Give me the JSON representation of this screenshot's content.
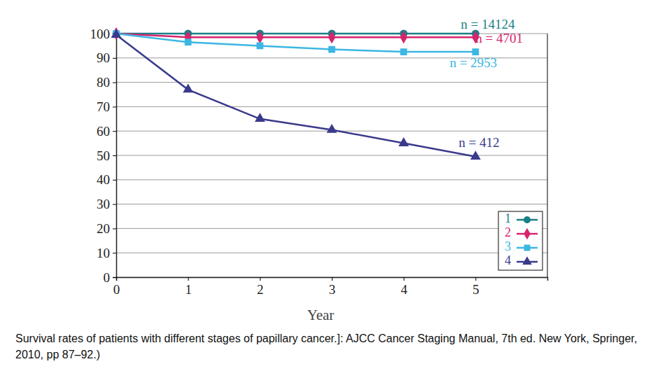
{
  "chart_data": {
    "type": "line",
    "caption": "Survival rates of patients with different stages of papillary cancer.]: AJCC Cancer Staging Manual, 7th ed. New York, Springer, 2010, pp 87–92.)",
    "x_label": "Year",
    "x": [
      0,
      1,
      2,
      3,
      4,
      5
    ],
    "xlim": [
      0,
      6
    ],
    "xticks": [
      0,
      1,
      2,
      3,
      4,
      5
    ],
    "ylim": [
      0,
      100
    ],
    "yticks": [
      0,
      10,
      20,
      30,
      40,
      50,
      60,
      70,
      80,
      90,
      100
    ],
    "grid": true,
    "legend": "lower right",
    "series": [
      {
        "name": "1",
        "color": "#1a7f86",
        "marker": "circle",
        "values": [
          100,
          100,
          100,
          100,
          100,
          100
        ]
      },
      {
        "name": "2",
        "color": "#d6246e",
        "marker": "diamond",
        "values": [
          100,
          98.5,
          98.5,
          98.5,
          98.5,
          98.5
        ]
      },
      {
        "name": "3",
        "color": "#3cb6e3",
        "marker": "square",
        "values": [
          100,
          96.5,
          95,
          93.5,
          92.5,
          92.5
        ]
      },
      {
        "name": "4",
        "color": "#3a3a8c",
        "marker": "triangle",
        "values": [
          99.5,
          77,
          65,
          60.5,
          55,
          49.5
        ]
      }
    ],
    "annotations": [
      {
        "text": "n = 14124",
        "x": 5.17,
        "y": 103.4,
        "color": "#1a7f86"
      },
      {
        "text": "n = 4701",
        "x": 5.33,
        "y": 97.4,
        "color": "#d6246e"
      },
      {
        "text": "n = 2953",
        "x": 4.97,
        "y": 87.4,
        "color": "#3cb6e3"
      },
      {
        "text": "n = 412",
        "x": 5.05,
        "y": 54.6,
        "color": "#3a3a8c"
      }
    ]
  }
}
